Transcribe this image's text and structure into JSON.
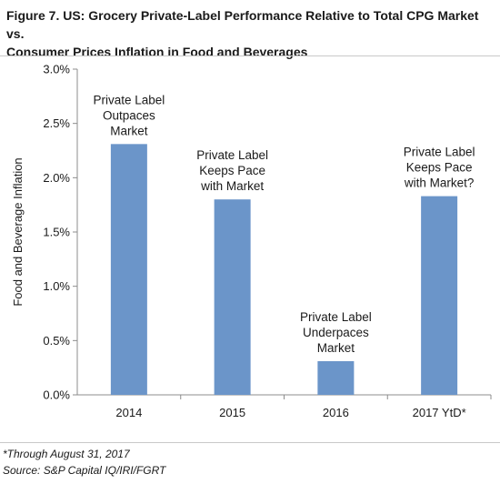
{
  "header": {
    "title_line1": "Figure 7. US: Grocery Private-Label Performance Relative to Total CPG Market vs.",
    "title_line2": "Consumer Prices Inflation in Food and Beverages"
  },
  "footer": {
    "footnote": "*Through August 31, 2017",
    "source": "Source: S&P Capital IQ/IRI/FGRT"
  },
  "chart_data": {
    "type": "bar",
    "categories": [
      "2014",
      "2015",
      "2016",
      "2017 YtD*"
    ],
    "values": [
      2.31,
      1.8,
      0.31,
      1.83
    ],
    "value_unit": "%",
    "ylabel": "Food and Beverage Inflation",
    "xlabel": "",
    "ylim": [
      0,
      3.0
    ],
    "yticks": [
      "0.0%",
      "0.5%",
      "1.0%",
      "1.5%",
      "2.0%",
      "2.5%",
      "3.0%"
    ],
    "grid": false,
    "legend": "none",
    "bar_color": "#6b95c9",
    "annotations": [
      [
        "Private Label",
        "Outpaces",
        "Market"
      ],
      [
        "Private Label",
        "Keeps Pace",
        "with Market"
      ],
      [
        "Private Label",
        "Underpaces",
        "Market"
      ],
      [
        "Private Label",
        "Keeps Pace",
        "with Market?"
      ]
    ]
  }
}
